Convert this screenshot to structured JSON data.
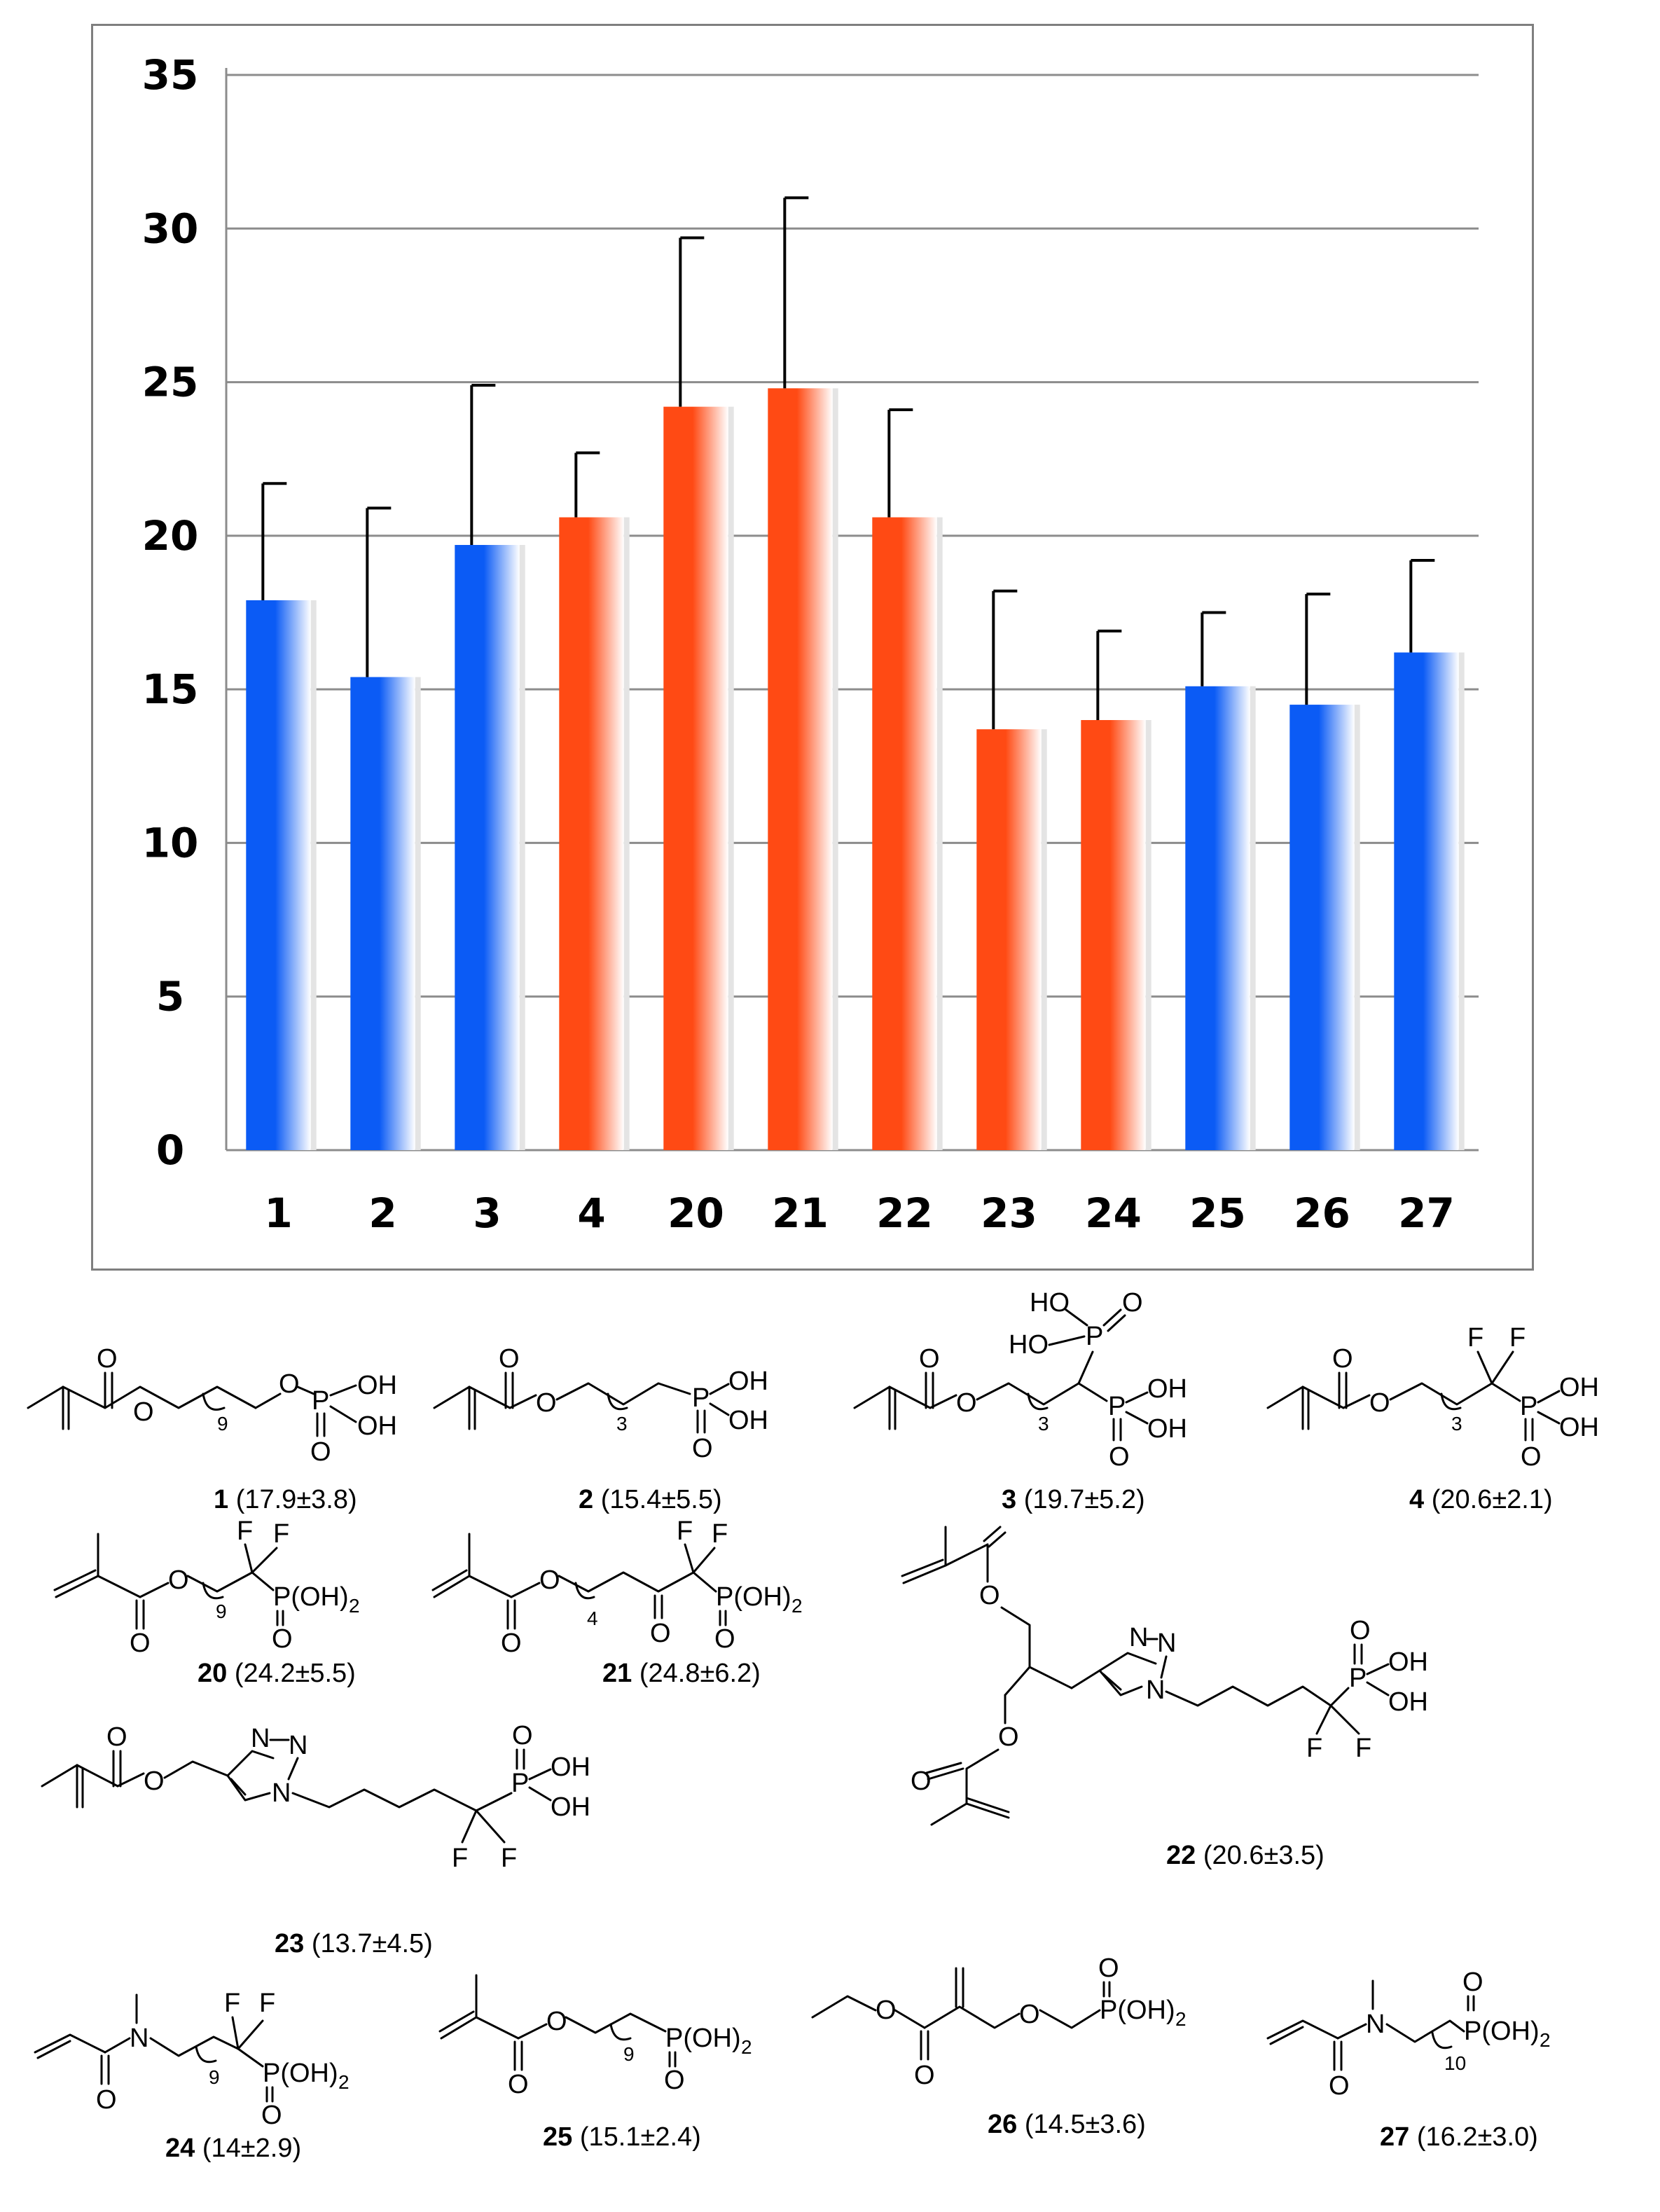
{
  "chart_data": {
    "type": "bar",
    "categories": [
      "1",
      "2",
      "3",
      "4",
      "20",
      "21",
      "22",
      "23",
      "24",
      "25",
      "26",
      "27"
    ],
    "values": [
      17.9,
      15.4,
      19.7,
      20.6,
      24.2,
      24.8,
      20.6,
      13.7,
      14,
      15.1,
      14.5,
      16.2
    ],
    "errors": [
      3.8,
      5.5,
      5.2,
      2.1,
      5.5,
      6.2,
      3.5,
      4.5,
      2.9,
      2.4,
      3.6,
      3.0
    ],
    "bar_colors": [
      "#0b5bf5",
      "#0b5bf5",
      "#0b5bf5",
      "#ff4a14",
      "#ff4a14",
      "#ff4a14",
      "#ff4a14",
      "#ff4a14",
      "#ff4a14",
      "#0b5bf5",
      "#0b5bf5",
      "#0b5bf5"
    ],
    "ylim": [
      0,
      35
    ],
    "yticks": [
      "0",
      "5",
      "10",
      "15",
      "20",
      "25",
      "30",
      "35"
    ],
    "grid": true,
    "title": "",
    "xlabel": "",
    "ylabel": ""
  },
  "compounds": [
    {
      "id": "1",
      "value": "(17.9±3.8)"
    },
    {
      "id": "2",
      "value": "(15.4±5.5)"
    },
    {
      "id": "3",
      "value": "(19.7±5.2)"
    },
    {
      "id": "4",
      "value": "(20.6±2.1)"
    },
    {
      "id": "20",
      "value": "(24.2±5.5)"
    },
    {
      "id": "21",
      "value": "(24.8±6.2)"
    },
    {
      "id": "22",
      "value": "(20.6±3.5)"
    },
    {
      "id": "23",
      "value": "(13.7±4.5)"
    },
    {
      "id": "24",
      "value": "(14±2.9)"
    },
    {
      "id": "25",
      "value": "(15.1±2.4)"
    },
    {
      "id": "26",
      "value": "(14.5±3.6)"
    },
    {
      "id": "27",
      "value": "(16.2±3.0)"
    }
  ],
  "atoms": {
    "O": "O",
    "OH": "OH",
    "HO": "HO",
    "P": "P",
    "F": "F",
    "N": "N",
    "PO3H2": "P(OH)",
    "two": "2",
    "n9": "9",
    "n3": "3",
    "n4": "4",
    "n10": "10"
  }
}
